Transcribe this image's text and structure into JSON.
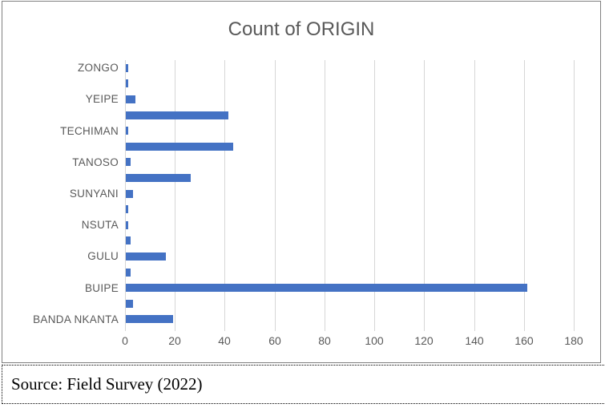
{
  "chart_data": {
    "type": "bar",
    "orientation": "horizontal",
    "title": "Count of ORIGIN",
    "categories": [
      "ZONGO",
      "",
      "YEIPE",
      "",
      "TECHIMAN",
      "",
      "TANOSO",
      "",
      "SUNYANI",
      "",
      "NSUTA",
      "",
      "GULU",
      "",
      "BUIPE",
      "",
      "BANDA NKANTA"
    ],
    "values": [
      1,
      1,
      4,
      41,
      1,
      43,
      2,
      26,
      3,
      1,
      1,
      2,
      16,
      2,
      161,
      3,
      19
    ],
    "xlabel": "",
    "ylabel": "",
    "xlim": [
      0,
      180
    ],
    "xticks": [
      0,
      20,
      40,
      60,
      80,
      100,
      120,
      140,
      160,
      180
    ],
    "grid": true,
    "legend": false,
    "bar_color": "#4472C4",
    "text_color": "#595959",
    "gridline_color": "#d6d6d6"
  },
  "source_note": {
    "text": "Source: Field Survey (2022)"
  }
}
